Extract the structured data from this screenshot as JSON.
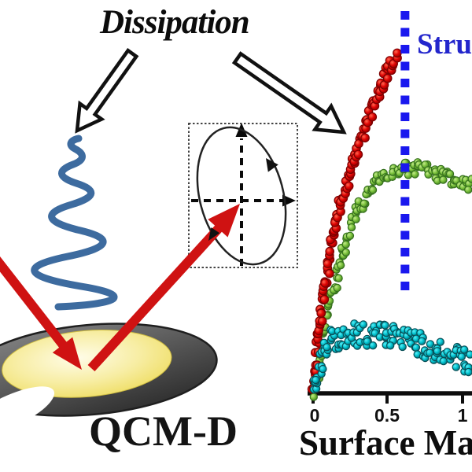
{
  "heading": {
    "dissipation": "Dissipation"
  },
  "scheme": {
    "device_label": "QCM-D",
    "spring_color": "#3d6b9f",
    "beam_color": "#cf1212",
    "disc_ring_color": "#4a4a4a",
    "disc_face_color": "#eeda52",
    "phase_box": {
      "border_style": "dotted",
      "axes_style": "dashed",
      "ellipse_direction": "counter-clockwise"
    }
  },
  "chart_data": {
    "type": "scatter",
    "xlabel": "Surface Ma",
    "x_ticks": [
      {
        "label": "0",
        "value": 0
      },
      {
        "label": "0.5",
        "value": 0.5
      },
      {
        "label": "1",
        "value": 1
      }
    ],
    "xlim": [
      0,
      1.06
    ],
    "ylim_norm": [
      0,
      1
    ],
    "y_axis_labeled": false,
    "grid": false,
    "legend": false,
    "vertical_marker": {
      "x": 0.615,
      "style": "dashed",
      "color": "#1a18ee",
      "label": "Stru",
      "label_color": "#2326cc"
    },
    "series": [
      {
        "name": "green-series",
        "color": "#7cc33c",
        "edge": "#35701d",
        "highlight": "#c2e88c",
        "radius": 4.6,
        "count": 130,
        "jitter_x": 0.015,
        "jitter_y": 0.02,
        "trend": [
          [
            0,
            0
          ],
          [
            0.03,
            0.07
          ],
          [
            0.065,
            0.15
          ],
          [
            0.105,
            0.24
          ],
          [
            0.15,
            0.33
          ],
          [
            0.21,
            0.43
          ],
          [
            0.28,
            0.52
          ],
          [
            0.36,
            0.585
          ],
          [
            0.44,
            0.625
          ],
          [
            0.52,
            0.648
          ],
          [
            0.6,
            0.658
          ],
          [
            0.68,
            0.66
          ],
          [
            0.76,
            0.653
          ],
          [
            0.84,
            0.643
          ],
          [
            0.92,
            0.632
          ],
          [
            1.0,
            0.622
          ],
          [
            1.06,
            0.615
          ]
        ]
      },
      {
        "name": "red-series",
        "color": "#e00404",
        "edge": "#7d0000",
        "highlight": "#ff6a52",
        "radius": 5.2,
        "count": 118,
        "jitter_x": 0.012,
        "jitter_y": 0.02,
        "trend": [
          [
            0,
            0
          ],
          [
            0.02,
            0.1
          ],
          [
            0.045,
            0.2
          ],
          [
            0.075,
            0.3
          ],
          [
            0.11,
            0.4
          ],
          [
            0.15,
            0.5
          ],
          [
            0.2,
            0.585
          ],
          [
            0.26,
            0.67
          ],
          [
            0.33,
            0.755
          ],
          [
            0.41,
            0.85
          ],
          [
            0.49,
            0.935
          ],
          [
            0.565,
            1.0
          ]
        ]
      },
      {
        "name": "cyan-series",
        "color": "#00c2cf",
        "edge": "#084f57",
        "highlight": "#5ceef5",
        "radius": 4.6,
        "count": 135,
        "jitter_x": 0.018,
        "jitter_y": 0.033,
        "trend": [
          [
            0,
            0.01
          ],
          [
            0.02,
            0.05
          ],
          [
            0.05,
            0.1
          ],
          [
            0.09,
            0.14
          ],
          [
            0.14,
            0.163
          ],
          [
            0.2,
            0.172
          ],
          [
            0.28,
            0.176
          ],
          [
            0.36,
            0.172
          ],
          [
            0.44,
            0.176
          ],
          [
            0.52,
            0.17
          ],
          [
            0.6,
            0.164
          ],
          [
            0.68,
            0.154
          ],
          [
            0.76,
            0.141
          ],
          [
            0.84,
            0.127
          ],
          [
            0.92,
            0.115
          ],
          [
            1.0,
            0.103
          ],
          [
            1.06,
            0.097
          ]
        ]
      }
    ]
  }
}
